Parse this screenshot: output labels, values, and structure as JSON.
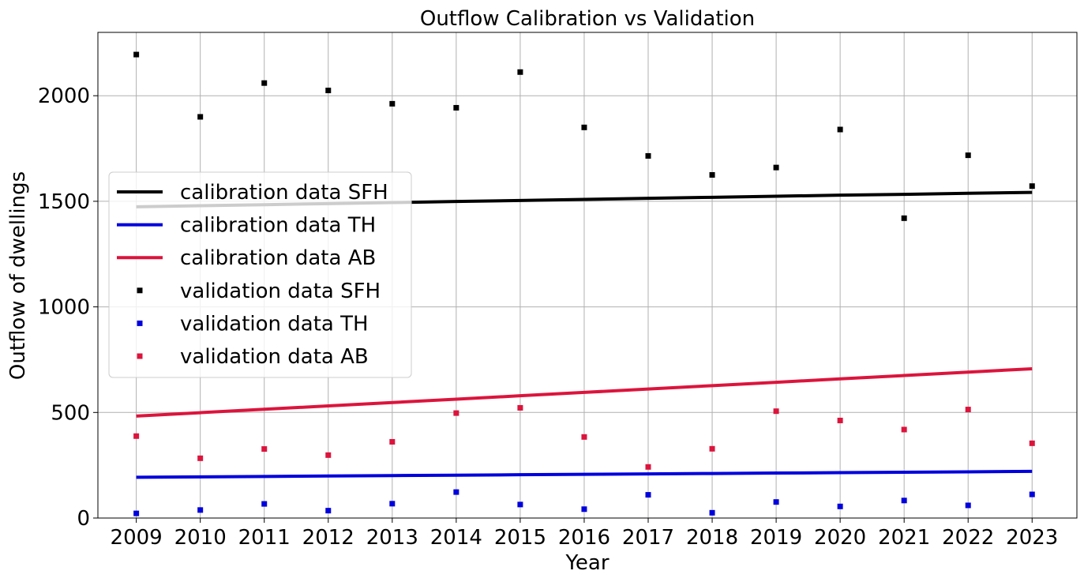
{
  "chart_data": {
    "type": "line",
    "title": "Outflow Calibration vs Validation",
    "xlabel": "Year",
    "ylabel": "Outflow of dwellings",
    "x": [
      2009,
      2010,
      2011,
      2012,
      2013,
      2014,
      2015,
      2016,
      2017,
      2018,
      2019,
      2020,
      2021,
      2022,
      2023
    ],
    "xlim": [
      2008.4,
      2023.7
    ],
    "ylim": [
      0,
      2300
    ],
    "yticks": [
      0,
      500,
      1000,
      1500,
      2000
    ],
    "grid": true,
    "legend_position": "center-left",
    "series": [
      {
        "name": "calibration data SFH",
        "kind": "line",
        "color": "#000000",
        "values": [
          1474,
          1479,
          1484,
          1489,
          1494,
          1499,
          1504,
          1509,
          1514,
          1519,
          1524,
          1529,
          1533,
          1538,
          1542
        ]
      },
      {
        "name": "calibration data TH",
        "kind": "line",
        "color": "#0000dd",
        "values": [
          193,
          195,
          197,
          199,
          201,
          203,
          205,
          207,
          209,
          211,
          213,
          215,
          217,
          219,
          221
        ]
      },
      {
        "name": "calibration data AB",
        "kind": "line",
        "color": "#dc143c",
        "values": [
          483,
          499,
          515,
          531,
          547,
          563,
          579,
          595,
          611,
          627,
          643,
          659,
          675,
          691,
          707
        ]
      },
      {
        "name": "validation data SFH",
        "kind": "scatter",
        "color": "#000000",
        "values": [
          2195,
          1900,
          2060,
          2025,
          1962,
          1943,
          2112,
          1850,
          1715,
          1625,
          1660,
          1840,
          1420,
          1718,
          1572
        ]
      },
      {
        "name": "validation data TH",
        "kind": "scatter",
        "color": "#0000dd",
        "values": [
          22,
          38,
          67,
          35,
          68,
          123,
          64,
          42,
          110,
          25,
          76,
          55,
          83,
          60,
          112
        ]
      },
      {
        "name": "validation data AB",
        "kind": "scatter",
        "color": "#dc143c",
        "values": [
          388,
          283,
          327,
          298,
          361,
          497,
          522,
          384,
          242,
          328,
          506,
          462,
          419,
          514,
          354
        ]
      }
    ]
  }
}
